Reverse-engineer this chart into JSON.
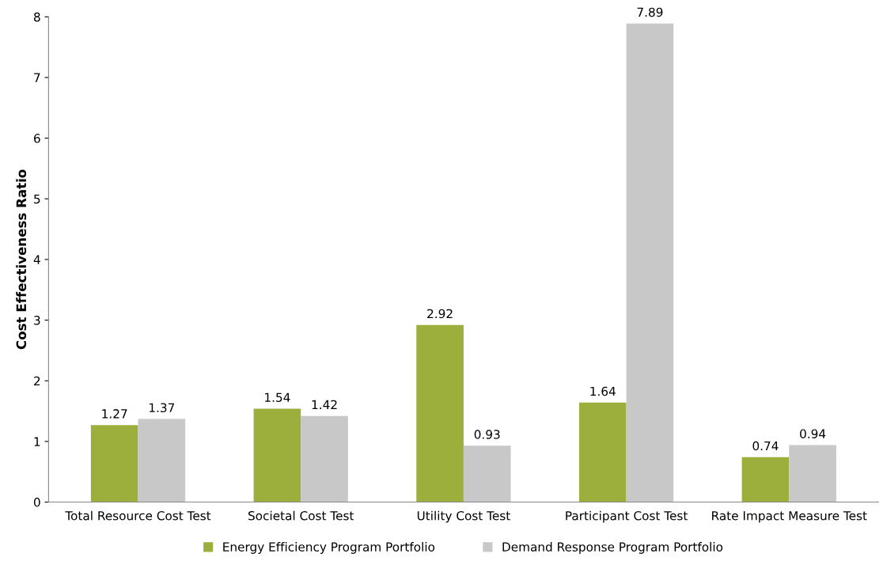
{
  "chart_data": {
    "type": "bar",
    "ylabel": "Cost Effectiveness Ratio",
    "categories": [
      "Total Resource Cost Test",
      "Societal Cost Test",
      "Utility Cost Test",
      "Participant Cost Test",
      "Rate Impact Measure Test"
    ],
    "series": [
      {
        "name": "Energy Efficiency Program Portfolio",
        "color": "#9caf3c",
        "values": [
          1.27,
          1.54,
          2.92,
          1.64,
          0.74
        ]
      },
      {
        "name": "Demand Response Program Portfolio",
        "color": "#c8c8c8",
        "values": [
          1.37,
          1.42,
          0.93,
          7.89,
          0.94
        ]
      }
    ],
    "ylim": [
      0,
      8
    ],
    "yticks": [
      0,
      1,
      2,
      3,
      4,
      5,
      6,
      7,
      8
    ],
    "data_labels": true,
    "grid": false,
    "legend": "bottom"
  }
}
